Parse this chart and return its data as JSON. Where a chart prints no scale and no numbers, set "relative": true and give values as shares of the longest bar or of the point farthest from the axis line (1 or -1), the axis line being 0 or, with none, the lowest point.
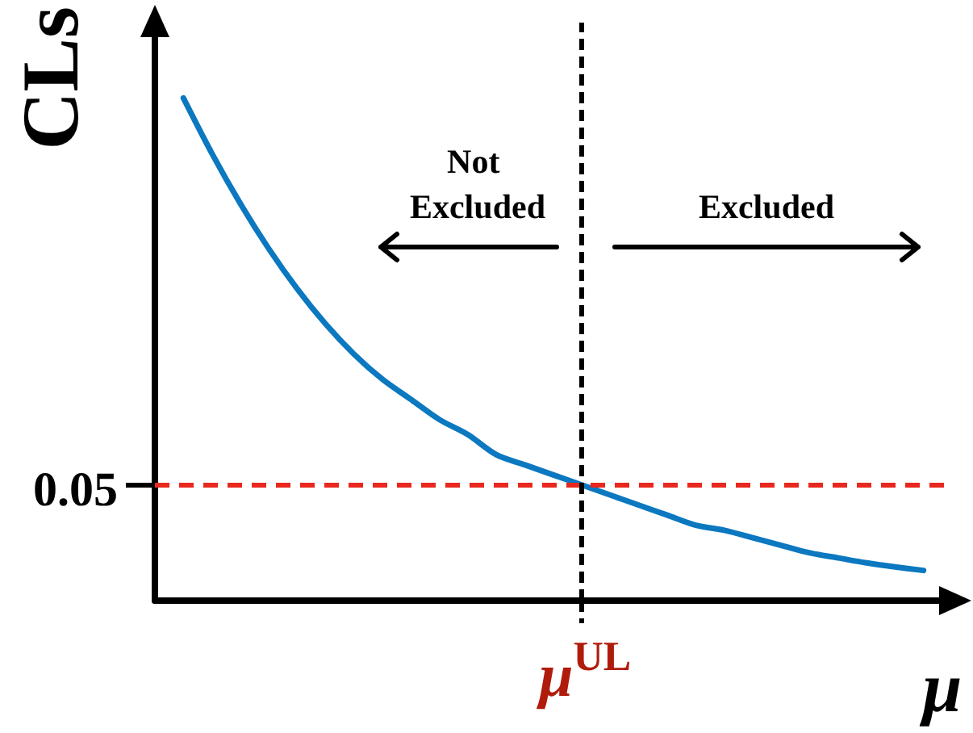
{
  "chart_data": {
    "type": "line",
    "xlabel": "μ",
    "ylabel": "CLs",
    "relative": true,
    "line_style": "solid",
    "categories": [
      null,
      null,
      null,
      null,
      null,
      null,
      null,
      null,
      null,
      null,
      null,
      null,
      null,
      null,
      null,
      null,
      null,
      null,
      null,
      null,
      null,
      null,
      null,
      null,
      null,
      null,
      null,
      null,
      null
    ],
    "series": [
      {
        "color": "#0b78c0",
        "values": [
          null,
          1,
          0.89,
          0.79,
          0.7,
          0.62,
          0.55,
          0.49,
          0.44,
          0.4,
          0.36,
          0.33,
          0.29,
          0.27,
          0.25,
          0.23,
          0.21,
          0.19,
          0.17,
          0.15,
          0.14,
          0.125,
          0.11,
          0.095,
          0.085,
          0.075,
          0.067,
          0.06,
          null
        ]
      }
    ],
    "ref_lines": [
      {
        "axis": "y",
        "value": 0.23,
        "color": "#e8281e",
        "line_style": "dashed"
      }
    ],
    "annotations": [
      "Not Excluded",
      "Excluded",
      "μ$^{UL}$",
      "0.05"
    ]
  }
}
